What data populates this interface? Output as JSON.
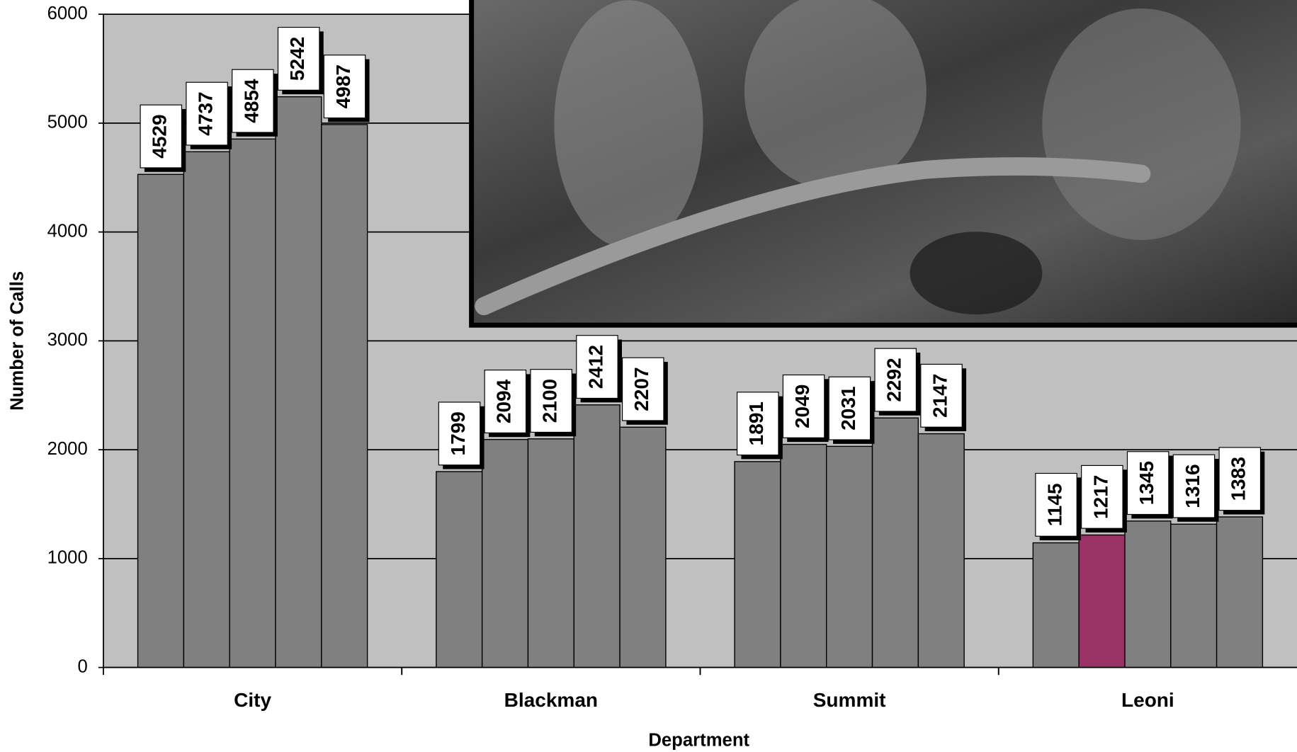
{
  "chart_data": {
    "type": "bar",
    "x_label": "Department",
    "y_label": "Number of Calls",
    "categories": [
      "City",
      "Blackman",
      "Summit",
      "Leoni"
    ],
    "series": [
      {
        "color": "#808080",
        "values": [
          4529,
          1799,
          1891,
          1145
        ]
      },
      {
        "color": "#808080",
        "colors": [
          "#808080",
          "#808080",
          "#808080",
          "#993366"
        ],
        "values": [
          4737,
          2094,
          2049,
          1217
        ]
      },
      {
        "color": "#808080",
        "values": [
          4854,
          2100,
          2031,
          1345
        ]
      },
      {
        "color": "#808080",
        "values": [
          5242,
          2412,
          2292,
          1316
        ]
      },
      {
        "color": "#808080",
        "values": [
          4987,
          2207,
          2147,
          1383
        ]
      }
    ],
    "ylim": [
      0,
      6000
    ],
    "yticks": [
      0,
      1000,
      2000,
      3000,
      4000,
      5000,
      6000
    ],
    "grid": true,
    "plot_background": "#c0c0c0"
  }
}
